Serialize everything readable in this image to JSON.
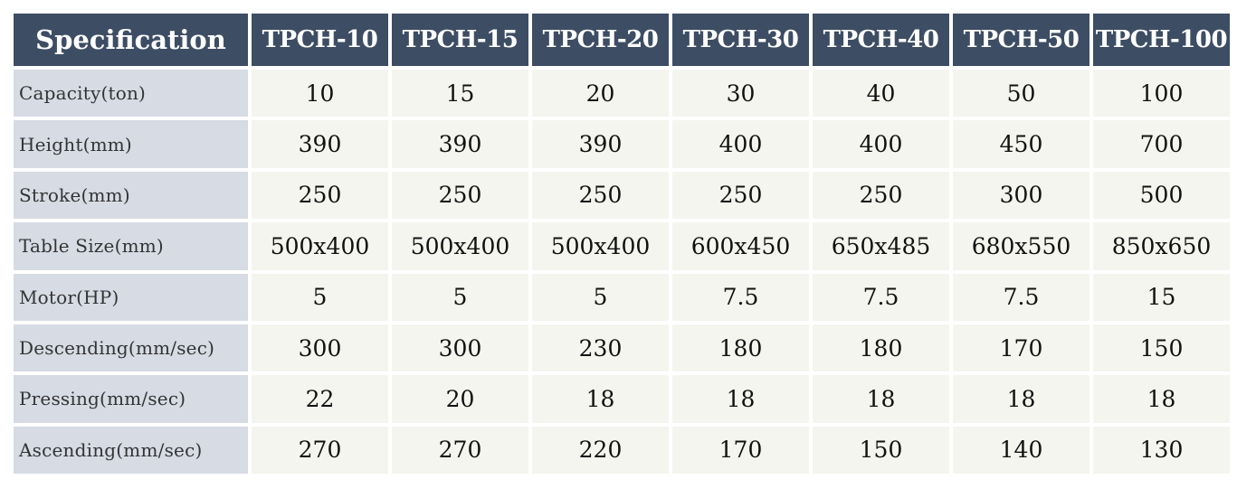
{
  "table": {
    "header": {
      "spec_label": "Specification",
      "models": [
        "TPCH-10",
        "TPCH-15",
        "TPCH-20",
        "TPCH-30",
        "TPCH-40",
        "TPCH-50",
        "TPCH-100"
      ]
    },
    "rows": [
      {
        "label": "Capacity(ton)",
        "values": [
          "10",
          "15",
          "20",
          "30",
          "40",
          "50",
          "100"
        ]
      },
      {
        "label": "Height(mm)",
        "values": [
          "390",
          "390",
          "390",
          "400",
          "400",
          "450",
          "700"
        ]
      },
      {
        "label": "Stroke(mm)",
        "values": [
          "250",
          "250",
          "250",
          "250",
          "250",
          "300",
          "500"
        ]
      },
      {
        "label": "Table Size(mm)",
        "values": [
          "500x400",
          "500x400",
          "500x400",
          "600x450",
          "650x485",
          "680x550",
          "850x650"
        ]
      },
      {
        "label": "Motor(HP)",
        "values": [
          "5",
          "5",
          "5",
          "7.5",
          "7.5",
          "7.5",
          "15"
        ]
      },
      {
        "label": "Descending(mm/sec)",
        "values": [
          "300",
          "300",
          "230",
          "180",
          "180",
          "170",
          "150"
        ]
      },
      {
        "label": "Pressing(mm/sec)",
        "values": [
          "22",
          "20",
          "18",
          "18",
          "18",
          "18",
          "18"
        ]
      },
      {
        "label": "Ascending(mm/sec)",
        "values": [
          "270",
          "270",
          "220",
          "170",
          "150",
          "140",
          "130"
        ]
      }
    ]
  },
  "colors": {
    "header_bg": "#3d4d64",
    "label_bg": "#d6dbe4",
    "cell_bg": "#f5f5ef"
  }
}
